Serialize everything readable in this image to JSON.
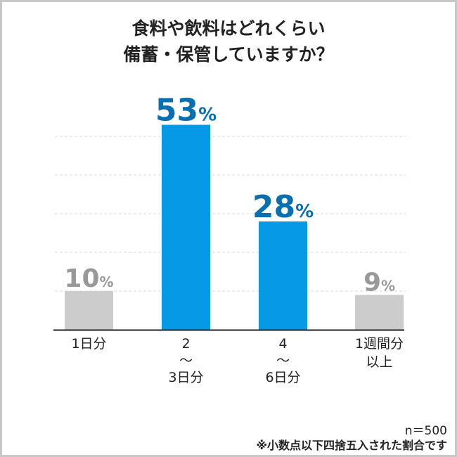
{
  "chart_data": {
    "type": "bar",
    "title": [
      "食料や飲料はどれくらい",
      "備蓄・保管していますか？"
    ],
    "categories": [
      [
        "1日分"
      ],
      [
        "2",
        "～",
        "3日分"
      ],
      [
        "4",
        "～",
        "6日分"
      ],
      [
        "1週間分",
        "以上"
      ]
    ],
    "values": [
      10,
      53,
      28,
      9
    ],
    "value_labels": [
      "10",
      "53",
      "28",
      "9"
    ],
    "unit": "%",
    "ylim": [
      0,
      55
    ],
    "gridlines": [
      10,
      20,
      30,
      40,
      50
    ],
    "colors": [
      "#cccccc",
      "#0599e6",
      "#0599e6",
      "#cccccc"
    ],
    "label_colors": [
      "#999999",
      "#0a6fb0",
      "#0a6fb0",
      "#999999"
    ]
  },
  "footer": {
    "n": "n＝500",
    "note": "※小数点以下四捨五入された割合です"
  }
}
